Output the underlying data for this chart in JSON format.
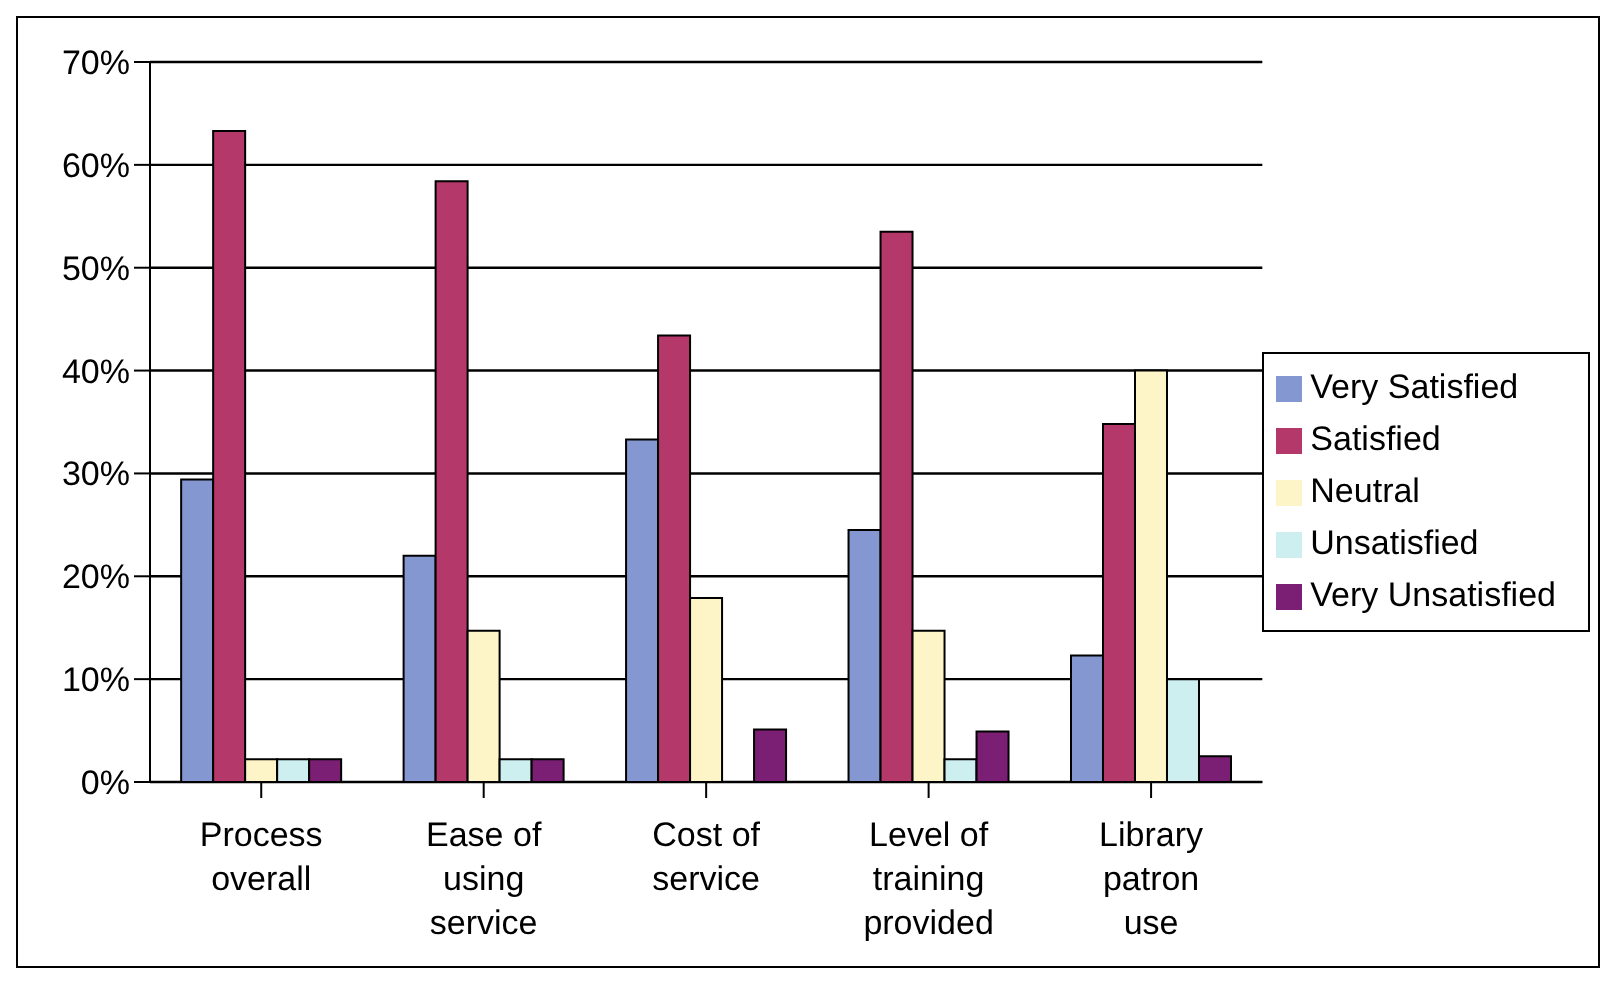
{
  "chart_data": {
    "type": "bar",
    "categories": [
      "Process overall",
      "Ease of using service",
      "Cost of service",
      "Level of training provided",
      "Library patron use"
    ],
    "series": [
      {
        "name": "Very Satisfied",
        "color": "#8497d0",
        "values": [
          29.4,
          22,
          33.3,
          24.5,
          12.3
        ]
      },
      {
        "name": "Satisfied",
        "color": "#b5386b",
        "values": [
          63.3,
          58.4,
          43.4,
          53.5,
          34.8
        ]
      },
      {
        "name": "Neutral",
        "color": "#fdf5c8",
        "values": [
          2.2,
          14.7,
          17.9,
          14.7,
          40
        ]
      },
      {
        "name": "Unsatisfied",
        "color": "#cdeff0",
        "values": [
          2.2,
          2.2,
          0,
          2.2,
          10
        ]
      },
      {
        "name": "Very Unsatisfied",
        "color": "#7b1f74",
        "values": [
          2.2,
          2.2,
          5.1,
          4.9,
          2.5
        ]
      }
    ],
    "ylim": [
      0,
      70
    ],
    "yticks": [
      {
        "value": 0,
        "label": "0%"
      },
      {
        "value": 10,
        "label": "10%"
      },
      {
        "value": 20,
        "label": "20%"
      },
      {
        "value": 30,
        "label": "30%"
      },
      {
        "value": 40,
        "label": "40%"
      },
      {
        "value": 50,
        "label": "50%"
      },
      {
        "value": 60,
        "label": "60%"
      },
      {
        "value": 70,
        "label": "70%"
      }
    ],
    "grid": "y",
    "legend": "right"
  }
}
